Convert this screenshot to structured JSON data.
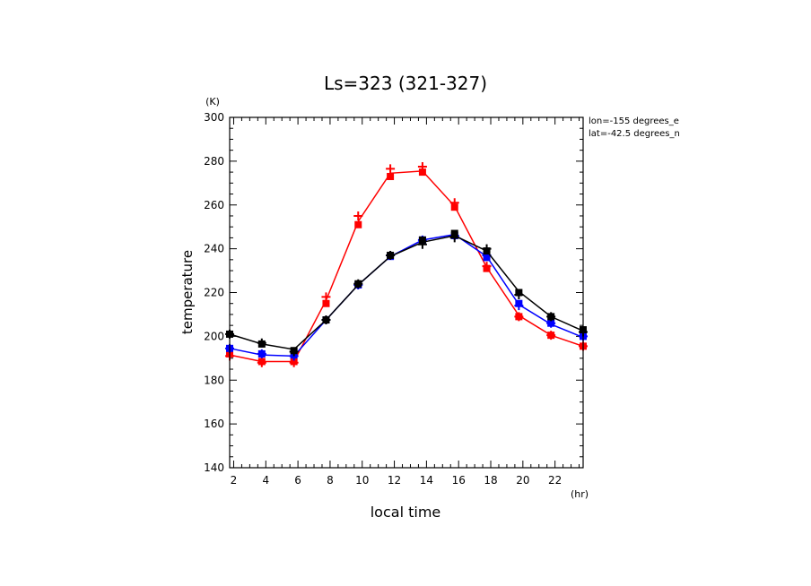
{
  "chart_data": {
    "type": "line",
    "title": "Ls=323 (321-327)",
    "xlabel": "local time",
    "ylabel": "temperature",
    "xunit": "(hr)",
    "yunit": "(K)",
    "xlim": [
      1.75,
      23.75
    ],
    "ylim": [
      140,
      300
    ],
    "xticks": [
      2,
      4,
      6,
      8,
      10,
      12,
      14,
      16,
      18,
      20,
      22
    ],
    "yticks": [
      140,
      160,
      180,
      200,
      220,
      240,
      260,
      280,
      300
    ],
    "annotations": [
      "lon=-155 degrees_e",
      "lat=-42.5 degrees_n"
    ],
    "x": [
      1.75,
      3.75,
      5.75,
      7.75,
      9.75,
      11.75,
      13.75,
      15.75,
      17.75,
      19.75,
      21.75,
      23.75
    ],
    "series": [
      {
        "color": "#ff0000",
        "values": [
          191.5,
          188.5,
          188.5,
          216.5,
          252.5,
          274.5,
          275.5,
          259.5,
          231.5,
          209.5,
          200.5,
          195.5
        ],
        "square_markers": [
          192,
          188.5,
          188.5,
          215,
          251,
          273,
          275,
          259,
          231,
          209,
          200.5,
          195.5
        ],
        "plus_markers": [
          191,
          188,
          188,
          218,
          255,
          276.5,
          277.5,
          261,
          232,
          209,
          200.5,
          195.5
        ]
      },
      {
        "color": "#0000ff",
        "values": [
          194.5,
          191.5,
          191,
          207.5,
          223.5,
          236.5,
          244,
          246.5,
          236.5,
          214.5,
          205.5,
          199.5
        ],
        "square_markers": [
          194.5,
          192,
          191.5,
          207.5,
          223.5,
          236.5,
          244,
          246,
          236,
          215,
          206,
          200
        ],
        "plus_markers": [
          194.5,
          192,
          191,
          207.5,
          223.5,
          237,
          244,
          246,
          237,
          214,
          206,
          200
        ]
      },
      {
        "color": "#000000",
        "values": [
          201,
          196.5,
          194,
          207.5,
          223.5,
          236.5,
          243,
          246,
          239,
          220.5,
          209,
          202.5
        ],
        "square_markers": [
          201,
          196.5,
          193.5,
          207.5,
          224,
          237,
          244,
          247,
          239,
          220,
          209,
          203
        ],
        "plus_markers": [
          201,
          197,
          193,
          207.5,
          224,
          237,
          242,
          245,
          240,
          219,
          209,
          202
        ]
      }
    ]
  }
}
